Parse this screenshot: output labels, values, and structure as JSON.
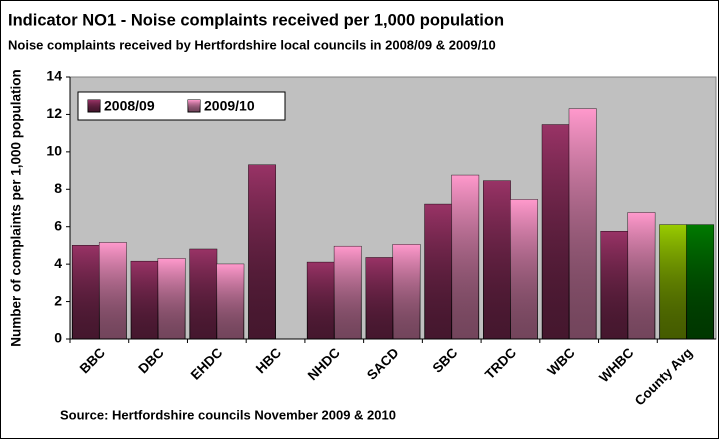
{
  "chart_data": {
    "type": "bar",
    "title": "Indicator NO1 - Noise complaints received per 1,000 population",
    "subtitle": "Noise complaints received by Hertfordshire local councils in 2008/09 & 2009/10",
    "y_label": "Number of complaints per 1,000 population",
    "source": "Source: Hertfordshire councils November 2009 & 2010",
    "categories": [
      "BBC",
      "DBC",
      "EHDC",
      "HBC",
      "NHDC",
      "SACD",
      "SBC",
      "TRDC",
      "WBC",
      "WHBC",
      "County Avg"
    ],
    "series": [
      {
        "name": "2008/09",
        "color": "#993366",
        "values": [
          5.0,
          4.15,
          4.8,
          9.3,
          4.1,
          4.35,
          7.2,
          8.45,
          11.45,
          5.75,
          6.1
        ],
        "colors": [
          "#993366",
          "#993366",
          "#993366",
          "#993366",
          "#993366",
          "#993366",
          "#993366",
          "#993366",
          "#993366",
          "#993366",
          "#99cc00"
        ]
      },
      {
        "name": "2009/10",
        "color": "#ff99cc",
        "values": [
          5.15,
          4.3,
          4.0,
          null,
          4.95,
          5.05,
          8.75,
          7.45,
          12.3,
          6.75,
          6.1
        ],
        "colors": [
          "#ff99cc",
          "#ff99cc",
          "#ff99cc",
          "#ff99cc",
          "#ff99cc",
          "#ff99cc",
          "#ff99cc",
          "#ff99cc",
          "#ff99cc",
          "#ff99cc",
          "#007a00"
        ]
      }
    ],
    "ylim": [
      0,
      14
    ],
    "yticks": [
      0,
      2,
      4,
      6,
      8,
      10,
      12,
      14
    ],
    "grid": false,
    "legend": "top-left"
  }
}
